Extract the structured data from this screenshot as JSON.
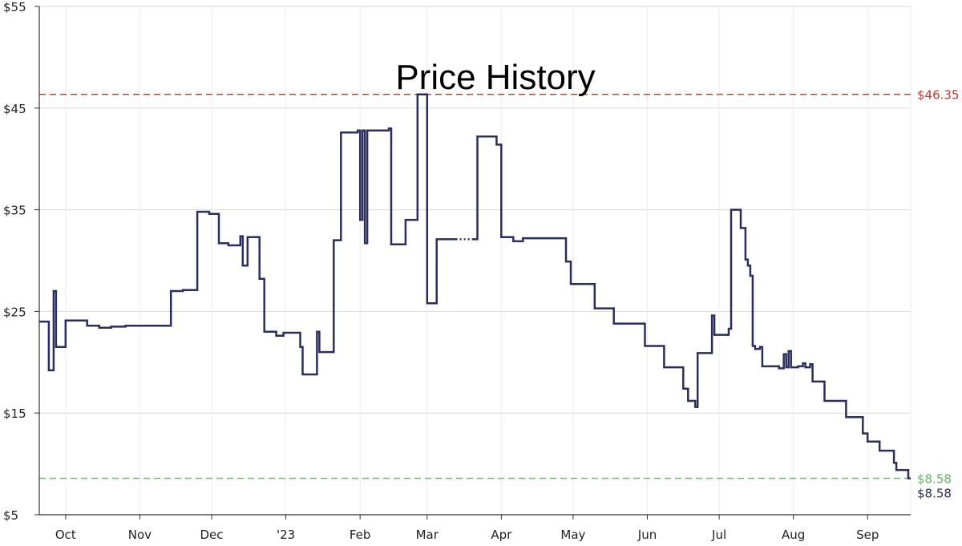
{
  "chart_data": {
    "type": "line",
    "title": "Price History",
    "ylim": [
      5,
      55
    ],
    "y_ticks": [
      5,
      15,
      25,
      35,
      45,
      55
    ],
    "y_tick_labels": [
      "$5",
      "$15",
      "$25",
      "$35",
      "$45",
      "$55"
    ],
    "x_ticks": [
      {
        "label": "Oct",
        "date": "2022-10-01"
      },
      {
        "label": "Nov",
        "date": "2022-11-01"
      },
      {
        "label": "Dec",
        "date": "2022-12-01"
      },
      {
        "label": "'23",
        "date": "2023-01-01"
      },
      {
        "label": "Feb",
        "date": "2023-02-01"
      },
      {
        "label": "Mar",
        "date": "2023-03-01"
      },
      {
        "label": "Apr",
        "date": "2023-04-01"
      },
      {
        "label": "May",
        "date": "2023-05-01"
      },
      {
        "label": "Jun",
        "date": "2023-06-01"
      },
      {
        "label": "Jul",
        "date": "2023-07-01"
      },
      {
        "label": "Aug",
        "date": "2023-08-01"
      },
      {
        "label": "Sep",
        "date": "2023-09-01"
      }
    ],
    "xlim": [
      "2022-09-20",
      "2023-09-19"
    ],
    "grid": true,
    "line_style": "step",
    "reference_lines": [
      {
        "label": "$46.35",
        "value": 46.35,
        "color": "#c0392b"
      },
      {
        "label": "$8.58",
        "value": 8.58,
        "color": "#5cb85c"
      }
    ],
    "current_label": "$8.58",
    "series": [
      {
        "color": "#2b2d5e",
        "points": [
          [
            "2022-09-20",
            24.0
          ],
          [
            "2022-09-24",
            19.2
          ],
          [
            "2022-09-26",
            27.0
          ],
          [
            "2022-09-27",
            21.5
          ],
          [
            "2022-10-01",
            24.1
          ],
          [
            "2022-10-10",
            23.6
          ],
          [
            "2022-10-15",
            23.4
          ],
          [
            "2022-10-20",
            23.5
          ],
          [
            "2022-10-26",
            23.6
          ],
          [
            "2022-11-07",
            23.6
          ],
          [
            "2022-11-14",
            27.0
          ],
          [
            "2022-11-19",
            27.1
          ],
          [
            "2022-11-25",
            34.8
          ],
          [
            "2022-11-30",
            34.6
          ],
          [
            "2022-12-04",
            31.7
          ],
          [
            "2022-12-08",
            31.5
          ],
          [
            "2022-12-13",
            32.4
          ],
          [
            "2022-12-14",
            29.5
          ],
          [
            "2022-12-16",
            32.3
          ],
          [
            "2022-12-21",
            28.2
          ],
          [
            "2022-12-23",
            23.0
          ],
          [
            "2022-12-28",
            22.6
          ],
          [
            "2022-12-31",
            22.9
          ],
          [
            "2023-01-07",
            21.5
          ],
          [
            "2023-01-08",
            18.8
          ],
          [
            "2023-01-14",
            23.0
          ],
          [
            "2023-01-15",
            21.0
          ],
          [
            "2023-01-21",
            32.0
          ],
          [
            "2023-01-24",
            42.6
          ],
          [
            "2023-01-31",
            42.8
          ],
          [
            "2023-02-01",
            34.0
          ],
          [
            "2023-02-02",
            42.8
          ],
          [
            "2023-02-03",
            31.7
          ],
          [
            "2023-02-04",
            42.8
          ],
          [
            "2023-02-13",
            43.0
          ],
          [
            "2023-02-14",
            31.6
          ],
          [
            "2023-02-20",
            34.0
          ],
          [
            "2023-02-25",
            46.35
          ],
          [
            "2023-03-01",
            25.8
          ],
          [
            "2023-03-05",
            32.1
          ],
          [
            "2023-03-13",
            null
          ],
          [
            "2023-03-20",
            32.1
          ],
          [
            "2023-03-22",
            42.2
          ],
          [
            "2023-03-30",
            41.4
          ],
          [
            "2023-04-01",
            32.3
          ],
          [
            "2023-04-06",
            31.9
          ],
          [
            "2023-04-10",
            32.2
          ],
          [
            "2023-04-15",
            32.2
          ],
          [
            "2023-04-28",
            29.9
          ],
          [
            "2023-04-30",
            27.7
          ],
          [
            "2023-05-10",
            25.3
          ],
          [
            "2023-05-18",
            23.8
          ],
          [
            "2023-05-31",
            21.6
          ],
          [
            "2023-06-08",
            19.5
          ],
          [
            "2023-06-16",
            17.4
          ],
          [
            "2023-06-18",
            16.2
          ],
          [
            "2023-06-21",
            15.6
          ],
          [
            "2023-06-22",
            20.9
          ],
          [
            "2023-06-28",
            24.6
          ],
          [
            "2023-06-29",
            22.7
          ],
          [
            "2023-07-05",
            23.3
          ],
          [
            "2023-07-06",
            35.0
          ],
          [
            "2023-07-10",
            33.2
          ],
          [
            "2023-07-12",
            30.1
          ],
          [
            "2023-07-13",
            29.5
          ],
          [
            "2023-07-14",
            28.5
          ],
          [
            "2023-07-15",
            21.6
          ],
          [
            "2023-07-16",
            21.3
          ],
          [
            "2023-07-18",
            21.5
          ],
          [
            "2023-07-19",
            19.6
          ],
          [
            "2023-07-26",
            19.4
          ],
          [
            "2023-07-28",
            20.8
          ],
          [
            "2023-07-29",
            19.5
          ],
          [
            "2023-07-30",
            21.1
          ],
          [
            "2023-07-31",
            19.5
          ],
          [
            "2023-08-03",
            19.6
          ],
          [
            "2023-08-05",
            19.9
          ],
          [
            "2023-08-06",
            19.5
          ],
          [
            "2023-08-08",
            19.8
          ],
          [
            "2023-08-09",
            18.1
          ],
          [
            "2023-08-14",
            16.2
          ],
          [
            "2023-08-23",
            14.6
          ],
          [
            "2023-08-30",
            13.0
          ],
          [
            "2023-09-01",
            12.2
          ],
          [
            "2023-09-06",
            11.3
          ],
          [
            "2023-09-12",
            10.1
          ],
          [
            "2023-09-13",
            9.4
          ],
          [
            "2023-09-18",
            8.58
          ],
          [
            "2023-09-19",
            8.58
          ]
        ]
      }
    ]
  }
}
